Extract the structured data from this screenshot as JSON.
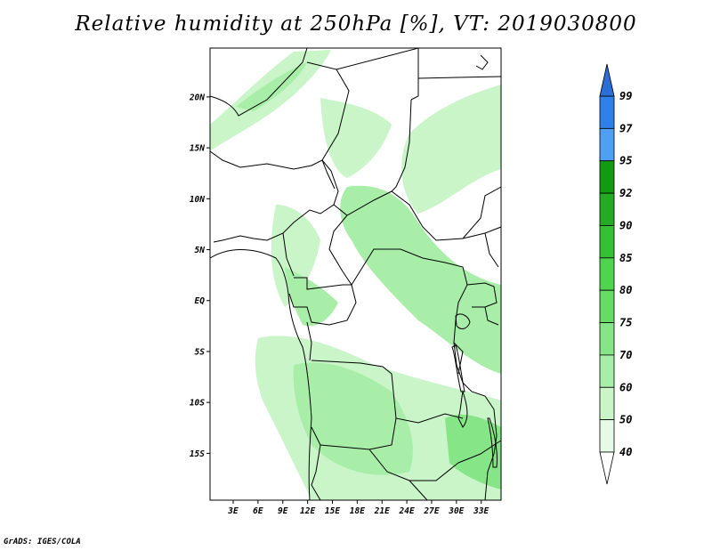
{
  "title": "Relative humidity at 250hPa [%], VT: 2019030800",
  "footer": "GrADS: IGES/COLA",
  "map": {
    "lat_ticks": [
      "20N",
      "15N",
      "10N",
      "5N",
      "EQ",
      "5S",
      "10S",
      "15S"
    ],
    "lon_ticks": [
      "3E",
      "6E",
      "9E",
      "12E",
      "15E",
      "18E",
      "21E",
      "24E",
      "27E",
      "30E",
      "33E"
    ],
    "lat_range": [
      -19.6,
      24.8
    ],
    "lon_range": [
      0.2,
      35.4
    ]
  },
  "colorbar": {
    "levels": [
      "99",
      "97",
      "95",
      "92",
      "90",
      "85",
      "80",
      "75",
      "70",
      "60",
      "50",
      "40"
    ],
    "colors": [
      "#2b6fd6",
      "#2f80e8",
      "#4f9ff5",
      "#129a12",
      "#25aa25",
      "#35c035",
      "#4fd44f",
      "#66dc66",
      "#86e586",
      "#a8eea8",
      "#c9f5c9",
      "#e6fbe6"
    ]
  }
}
